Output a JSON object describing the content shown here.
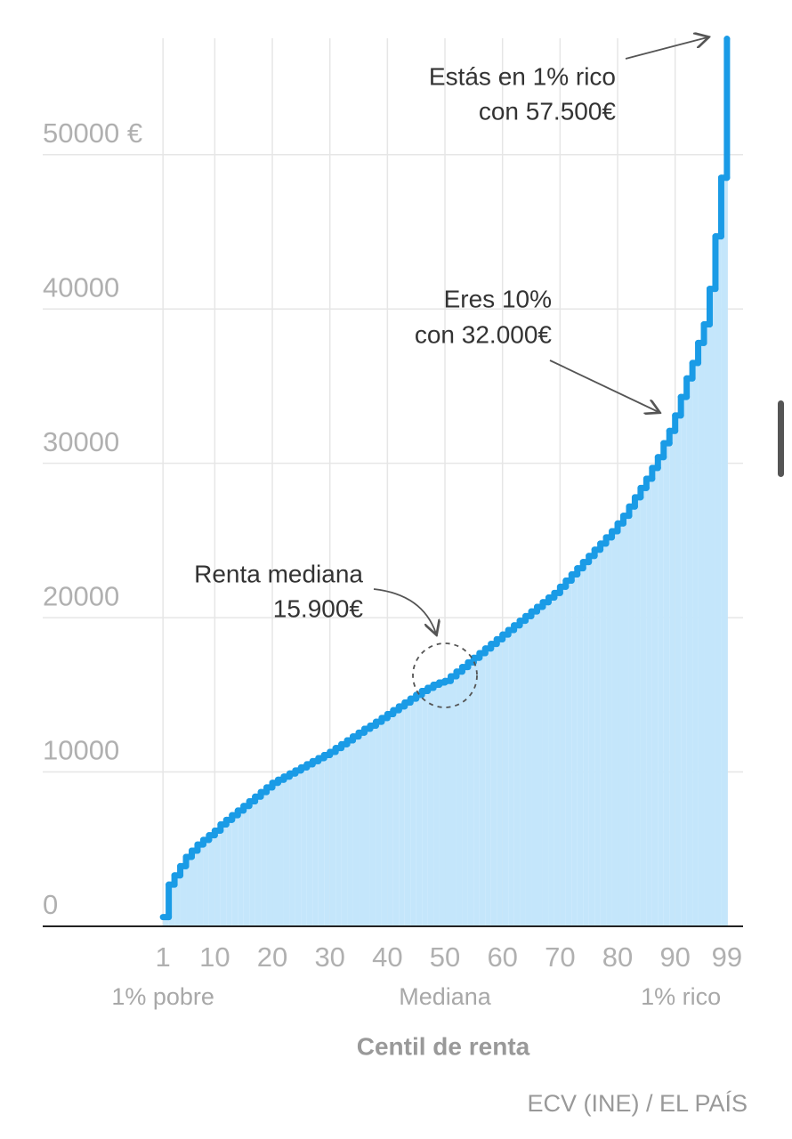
{
  "chart_data": {
    "type": "step",
    "x": [
      1,
      2,
      3,
      4,
      5,
      6,
      7,
      8,
      9,
      10,
      11,
      12,
      13,
      14,
      15,
      16,
      17,
      18,
      19,
      20,
      21,
      22,
      23,
      24,
      25,
      26,
      27,
      28,
      29,
      30,
      31,
      32,
      33,
      34,
      35,
      36,
      37,
      38,
      39,
      40,
      41,
      42,
      43,
      44,
      45,
      46,
      47,
      48,
      49,
      50,
      51,
      52,
      53,
      54,
      55,
      56,
      57,
      58,
      59,
      60,
      61,
      62,
      63,
      64,
      65,
      66,
      67,
      68,
      69,
      70,
      71,
      72,
      73,
      74,
      75,
      76,
      77,
      78,
      79,
      80,
      81,
      82,
      83,
      84,
      85,
      86,
      87,
      88,
      89,
      90,
      91,
      92,
      93,
      94,
      95,
      96,
      97,
      98,
      99
    ],
    "values": [
      600,
      2700,
      3300,
      3900,
      4500,
      4900,
      5300,
      5600,
      5900,
      6200,
      6600,
      6900,
      7200,
      7500,
      7800,
      8100,
      8400,
      8700,
      9000,
      9300,
      9500,
      9700,
      9900,
      10100,
      10300,
      10500,
      10700,
      10900,
      11100,
      11300,
      11550,
      11800,
      12050,
      12300,
      12550,
      12800,
      13000,
      13250,
      13500,
      13750,
      14000,
      14250,
      14500,
      14750,
      15000,
      15250,
      15450,
      15650,
      15800,
      15900,
      16200,
      16500,
      16800,
      17100,
      17400,
      17700,
      18000,
      18300,
      18600,
      18900,
      19200,
      19500,
      19800,
      20100,
      20400,
      20700,
      21000,
      21300,
      21600,
      22000,
      22400,
      22800,
      23200,
      23600,
      24000,
      24400,
      24800,
      25200,
      25600,
      26100,
      26600,
      27200,
      27800,
      28400,
      29000,
      29700,
      30400,
      31300,
      32100,
      33100,
      34300,
      35500,
      36500,
      37800,
      39000,
      41300,
      44700,
      48500,
      57500
    ],
    "color": "#1a9be6",
    "fill_color": "#c4e6fb",
    "xlim": [
      -19.9,
      101.8
    ],
    "xticks": [
      1,
      10,
      20,
      30,
      40,
      50,
      60,
      70,
      80,
      90,
      99
    ],
    "ylim": [
      0,
      58000
    ],
    "yticks": [
      0,
      10000,
      20000,
      30000,
      40000,
      {
        "value": 50000,
        "label": "50000 €"
      }
    ],
    "grid": true,
    "x_sublabels": [
      {
        "x": 1,
        "label": "1% pobre"
      },
      {
        "x": 50,
        "label": "Mediana"
      },
      {
        "x": 91,
        "label": "1% rico"
      }
    ],
    "xlabel": "Centil de renta",
    "source": "ECV (INE) / EL PAÍS",
    "annotations": [
      {
        "lines": [
          "Estás en 1% rico",
          "con 57.500€"
        ]
      },
      {
        "lines": [
          "Eres 10%",
          "con 32.000€"
        ]
      },
      {
        "lines": [
          "Renta mediana",
          "15.900€"
        ]
      }
    ]
  }
}
